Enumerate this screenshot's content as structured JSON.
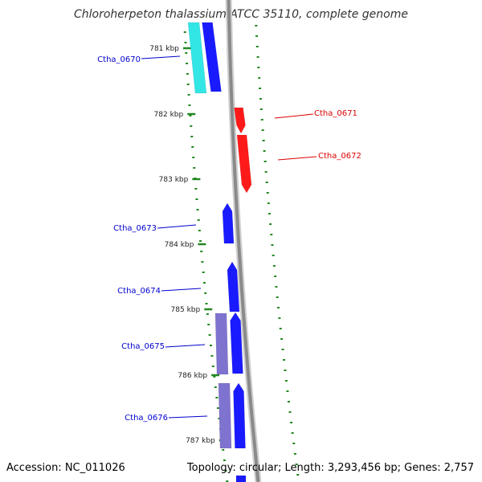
{
  "title": "Chloroherpeton thalassium ATCC 35110, complete genome",
  "footer": {
    "accession": "Accession: NC_011026",
    "topology": "Topology: circular; Length: 3,293,456 bp; Genes: 2,757"
  },
  "colors": {
    "backbone": "#8a8a8a",
    "tick": "#228822",
    "tick_label": "#222222",
    "forward_gene": "#1a1aff",
    "reverse_gene": "#ff1a1a",
    "cyan_gene": "#33e6e6",
    "purple_gene": "#7f73d0",
    "label_blue": "#0000cc",
    "label_red": "#dd0000"
  },
  "kbp_ticks": [
    {
      "label": "781 kbp",
      "kbp": 781
    },
    {
      "label": "782 kbp",
      "kbp": 782
    },
    {
      "label": "783 kbp",
      "kbp": 783
    },
    {
      "label": "784 kbp",
      "kbp": 784
    },
    {
      "label": "785 kbp",
      "kbp": 785
    },
    {
      "label": "786 kbp",
      "kbp": 786
    },
    {
      "label": "787 kbp",
      "kbp": 787
    }
  ],
  "genes": [
    {
      "name": "Ctha_0670",
      "label": "Ctha_0670",
      "strand": "+",
      "color": "blue",
      "shown": true
    },
    {
      "name": "Ctha_0671",
      "label": "Ctha_0671",
      "strand": "-",
      "color": "red",
      "shown": true
    },
    {
      "name": "Ctha_0672",
      "label": "Ctha_0672",
      "strand": "-",
      "color": "red",
      "shown": true
    },
    {
      "name": "Ctha_0673",
      "label": "Ctha_0673",
      "strand": "+",
      "color": "blue",
      "shown": true
    },
    {
      "name": "Ctha_0674",
      "label": "Ctha_0674",
      "strand": "+",
      "color": "blue",
      "shown": true
    },
    {
      "name": "Ctha_0675",
      "label": "Ctha_0675",
      "strand": "+",
      "color": "blue",
      "shown": true
    },
    {
      "name": "Ctha_0676",
      "label": "Ctha_0676",
      "strand": "+",
      "color": "blue",
      "shown": true
    }
  ]
}
